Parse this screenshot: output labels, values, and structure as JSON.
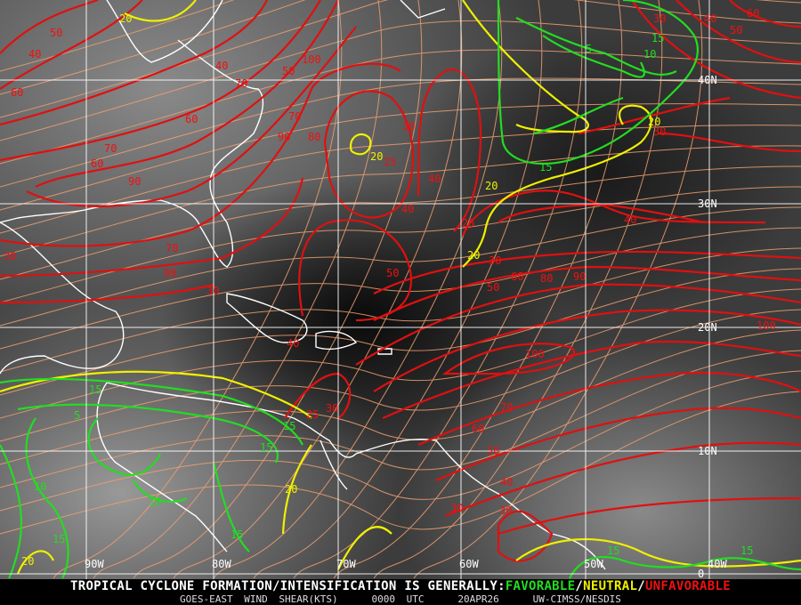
{
  "footer": {
    "headline_prefix": "TROPICAL CYCLONE FORMATION/INTENSIFICATION IS GENERALLY:",
    "favorable": "FAVORABLE",
    "sep1": "/",
    "neutral": "NEUTRAL",
    "sep2": "/",
    "unfavorable": "UNFAVORABLE",
    "product": "GOES-EAST WIND SHEAR(KTS)",
    "time": "0000 UTC",
    "date": "20APR26",
    "source": "UW-CIMSS/NESDIS"
  },
  "colors": {
    "favorable": "#22dd22",
    "neutral": "#f0f000",
    "unfavorable": "#ee1111",
    "streamline": "#f0a070",
    "coast": "#ffffff",
    "grid": "#ffffff"
  },
  "grid": {
    "longitudes": [
      "90W",
      "80W",
      "70W",
      "60W",
      "50W",
      "40W"
    ],
    "latitudes": [
      "40N",
      "30N",
      "20N",
      "10N",
      "0"
    ]
  },
  "contour_labels": {
    "unfavorable": [
      "50",
      "40",
      "40",
      "60",
      "70",
      "100",
      "50",
      "60",
      "70",
      "90",
      "80",
      "70",
      "60",
      "90",
      "30",
      "40",
      "40",
      "25",
      "70",
      "80",
      "30",
      "50",
      "40",
      "25",
      "30",
      "50",
      "60",
      "80",
      "90",
      "30",
      "40",
      "100",
      "100",
      "70",
      "60",
      "50",
      "40",
      "25",
      "30",
      "30",
      "30",
      "30",
      "40",
      "60",
      "50",
      "30"
    ],
    "neutral": [
      "20",
      "20",
      "20",
      "20",
      "20",
      "20",
      "20"
    ],
    "favorable": [
      "5",
      "15",
      "10",
      "15",
      "15",
      "5",
      "15",
      "15",
      "10",
      "10",
      "15",
      "15",
      "15",
      "15"
    ]
  }
}
